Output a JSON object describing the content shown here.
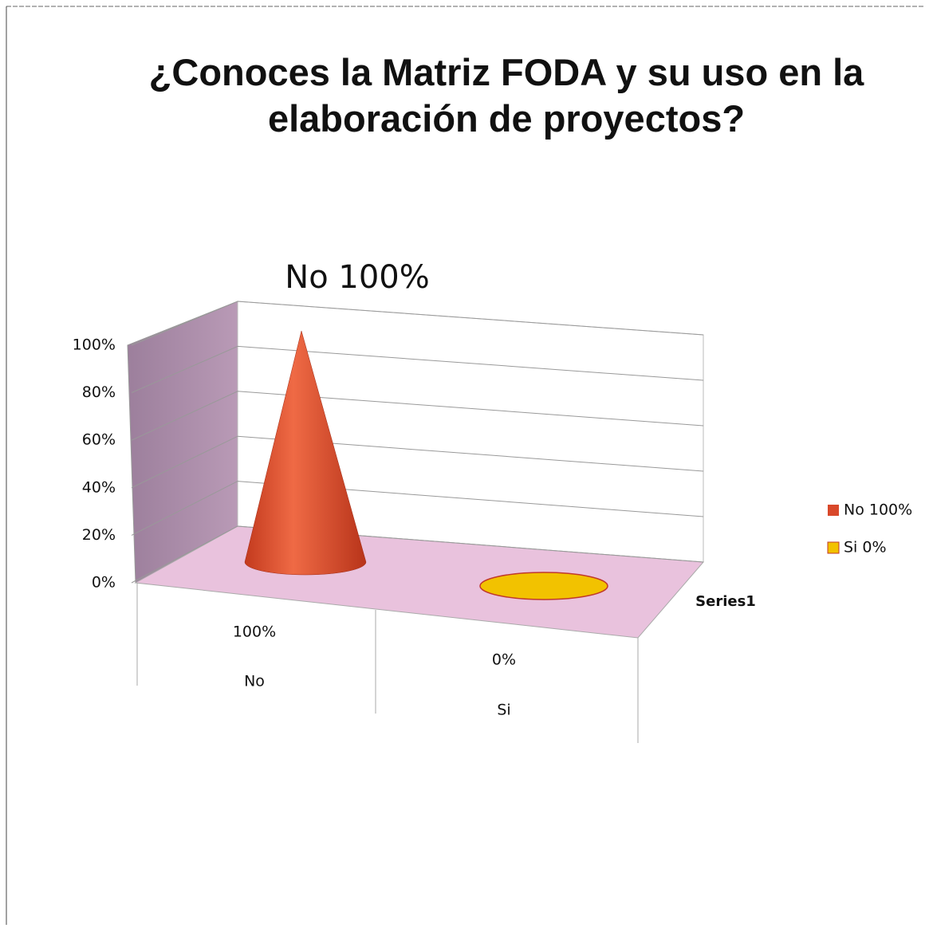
{
  "chart_data": {
    "type": "cone",
    "title": "¿Conoces la Matriz FODA y su uso en la elaboración de proyectos?",
    "annotation": "No 100%",
    "categories": [
      "No",
      "Si"
    ],
    "series": [
      {
        "name": "Series1",
        "values": [
          100,
          0
        ],
        "value_labels": [
          "100%",
          "0%"
        ],
        "colors": [
          "#d9482a",
          "#f2c200"
        ]
      }
    ],
    "legend_labels": [
      "No 100%",
      "Si 0%"
    ],
    "legend": "right",
    "ylim": [
      0,
      100
    ],
    "yticks": [
      {
        "value": 0,
        "label": "0%"
      },
      {
        "value": 20,
        "label": "20%"
      },
      {
        "value": 40,
        "label": "40%"
      },
      {
        "value": 60,
        "label": "60%"
      },
      {
        "value": 80,
        "label": "80%"
      },
      {
        "value": 100,
        "label": "100%"
      }
    ],
    "grid": true
  }
}
